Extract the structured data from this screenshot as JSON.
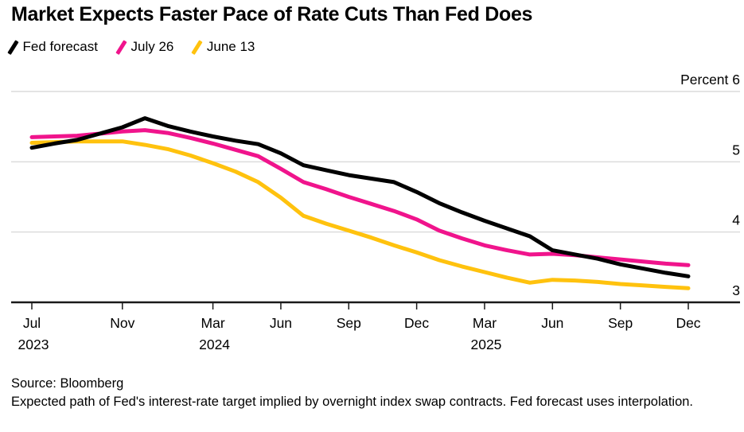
{
  "header": {
    "title": "Market Expects Faster Pace of Rate Cuts Than Fed Does"
  },
  "legend": {
    "items": [
      {
        "label": "Fed forecast",
        "color": "#000000"
      },
      {
        "label": "July 26",
        "color": "#f0148c"
      },
      {
        "label": "June 13",
        "color": "#ffc20e"
      }
    ]
  },
  "chart_data": {
    "type": "line",
    "title": "Market Expects Faster Pace of Rate Cuts Than Fed Does",
    "ylabel": "Percent",
    "ylim": [
      3,
      6
    ],
    "grid": "horizontal",
    "legend_position": "top-left",
    "x": [
      "Jul 2023",
      "Aug 2023",
      "Sep 2023",
      "Oct 2023",
      "Nov 2023",
      "Dec 2023",
      "Jan 2024",
      "Feb 2024",
      "Mar 2024",
      "Apr 2024",
      "May 2024",
      "Jun 2024",
      "Jul 2024",
      "Aug 2024",
      "Sep 2024",
      "Oct 2024",
      "Nov 2024",
      "Dec 2024",
      "Jan 2025",
      "Feb 2025",
      "Mar 2025",
      "Apr 2025",
      "May 2025",
      "Jun 2025",
      "Jul 2025",
      "Aug 2025",
      "Sep 2025",
      "Oct 2025",
      "Nov 2025",
      "Dec 2025"
    ],
    "y_axis": {
      "ticks": [
        {
          "value": 6,
          "label": "Percent 6"
        },
        {
          "value": 5,
          "label": "5"
        },
        {
          "value": 4,
          "label": "4"
        },
        {
          "value": 3,
          "label": "3"
        }
      ]
    },
    "x_ticks": [
      {
        "index": 0,
        "label": "Jul",
        "year": "2023"
      },
      {
        "index": 4,
        "label": "Nov",
        "year": ""
      },
      {
        "index": 8,
        "label": "Mar",
        "year": "2024"
      },
      {
        "index": 11,
        "label": "Jun",
        "year": ""
      },
      {
        "index": 14,
        "label": "Sep",
        "year": ""
      },
      {
        "index": 17,
        "label": "Dec",
        "year": ""
      },
      {
        "index": 20,
        "label": "Mar",
        "year": "2025"
      },
      {
        "index": 23,
        "label": "Jun",
        "year": ""
      },
      {
        "index": 26,
        "label": "Sep",
        "year": ""
      },
      {
        "index": 29,
        "label": "Dec",
        "year": ""
      }
    ],
    "series": [
      {
        "name": "June 13",
        "color": "#ffc20e",
        "values": [
          5.27,
          5.28,
          5.29,
          5.29,
          5.29,
          5.24,
          5.18,
          5.09,
          4.98,
          4.86,
          4.71,
          4.49,
          4.23,
          4.12,
          4.02,
          3.92,
          3.81,
          3.71,
          3.6,
          3.51,
          3.43,
          3.35,
          3.28,
          3.32,
          3.31,
          3.29,
          3.26,
          3.24,
          3.22,
          3.2
        ]
      },
      {
        "name": "July 26",
        "color": "#f0148c",
        "values": [
          5.35,
          5.36,
          5.37,
          5.4,
          5.43,
          5.45,
          5.41,
          5.34,
          5.26,
          5.17,
          5.08,
          4.9,
          4.71,
          4.61,
          4.5,
          4.4,
          4.3,
          4.18,
          4.02,
          3.91,
          3.81,
          3.74,
          3.68,
          3.69,
          3.67,
          3.64,
          3.61,
          3.58,
          3.55,
          3.53
        ]
      },
      {
        "name": "Fed forecast",
        "color": "#000000",
        "values": [
          5.2,
          5.26,
          5.31,
          5.4,
          5.49,
          5.62,
          5.51,
          5.43,
          5.36,
          5.3,
          5.25,
          5.12,
          4.95,
          4.88,
          4.81,
          4.76,
          4.71,
          4.57,
          4.41,
          4.28,
          4.16,
          4.05,
          3.94,
          3.74,
          3.68,
          3.62,
          3.54,
          3.48,
          3.42,
          3.37
        ]
      }
    ],
    "colors": {
      "gridline": "#dcdcdc",
      "axis": "#1a1a1a",
      "text": "#000000"
    }
  },
  "footer": {
    "source": "Source: Bloomberg",
    "note": "Expected path of Fed's interest-rate target implied by overnight index swap contracts. Fed forecast uses interpolation."
  }
}
